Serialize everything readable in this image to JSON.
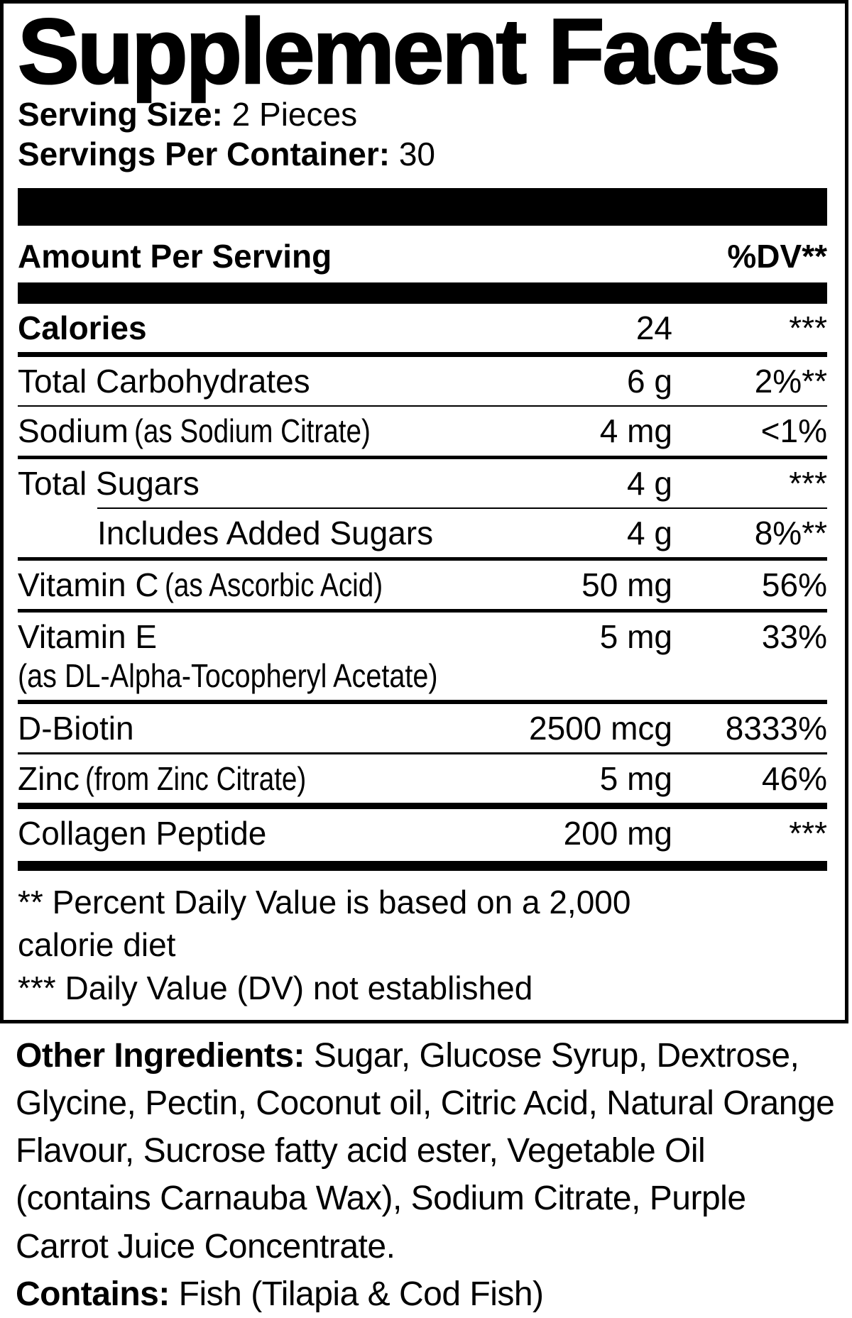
{
  "colors": {
    "text": "#000000",
    "background": "#ffffff"
  },
  "panel": {
    "title": "Supplement Facts",
    "serving_size": {
      "label": "Serving Size:",
      "value": "2 Pieces"
    },
    "servings_per_container": {
      "label": "Servings Per Container:",
      "value": "30"
    },
    "header": {
      "amount_label": "Amount Per Serving",
      "dv_label": "%DV**"
    },
    "rows": [
      {
        "name": "Calories",
        "amount": "24",
        "dv": "***"
      },
      {
        "name": "Total Carbohydrates",
        "amount": "6 g",
        "dv": "2%**"
      },
      {
        "name": "Sodium",
        "qualifier": "(as Sodium Citrate)",
        "amount": "4 mg",
        "dv": "<1%"
      },
      {
        "name": "Total Sugars",
        "amount": "4 g",
        "dv": "***"
      },
      {
        "name": "Includes Added Sugars",
        "amount": "4 g",
        "dv": "8%**"
      },
      {
        "name": "Vitamin C",
        "qualifier": "(as Ascorbic Acid)",
        "amount": "50 mg",
        "dv": "56%"
      },
      {
        "name": "Vitamin E",
        "qualifier": "(as DL-Alpha-Tocopheryl Acetate)",
        "amount": "5 mg",
        "dv": "33%"
      },
      {
        "name": "D-Biotin",
        "amount": "2500 mcg",
        "dv": "8333%"
      },
      {
        "name": "Zinc",
        "qualifier": "(from Zinc Citrate)",
        "amount": "5 mg",
        "dv": "46%"
      },
      {
        "name": "Collagen Peptide",
        "amount": "200 mg",
        "dv": "***"
      }
    ],
    "footnotes": [
      "** Percent Daily Value is based on a 2,000 calorie diet",
      "*** Daily Value (DV) not established"
    ]
  },
  "other_ingredients": {
    "label": "Other Ingredients:",
    "value": "Sugar, Glucose Syrup, Dextrose, Glycine, Pectin, Coconut oil, Citric Acid, Natural Orange Flavour, Sucrose fatty acid ester, Vegetable Oil (contains Carnauba Wax), Sodium Citrate, Purple Carrot Juice Concentrate."
  },
  "contains": {
    "label": "Contains:",
    "value": "Fish (Tilapia & Cod Fish)"
  }
}
